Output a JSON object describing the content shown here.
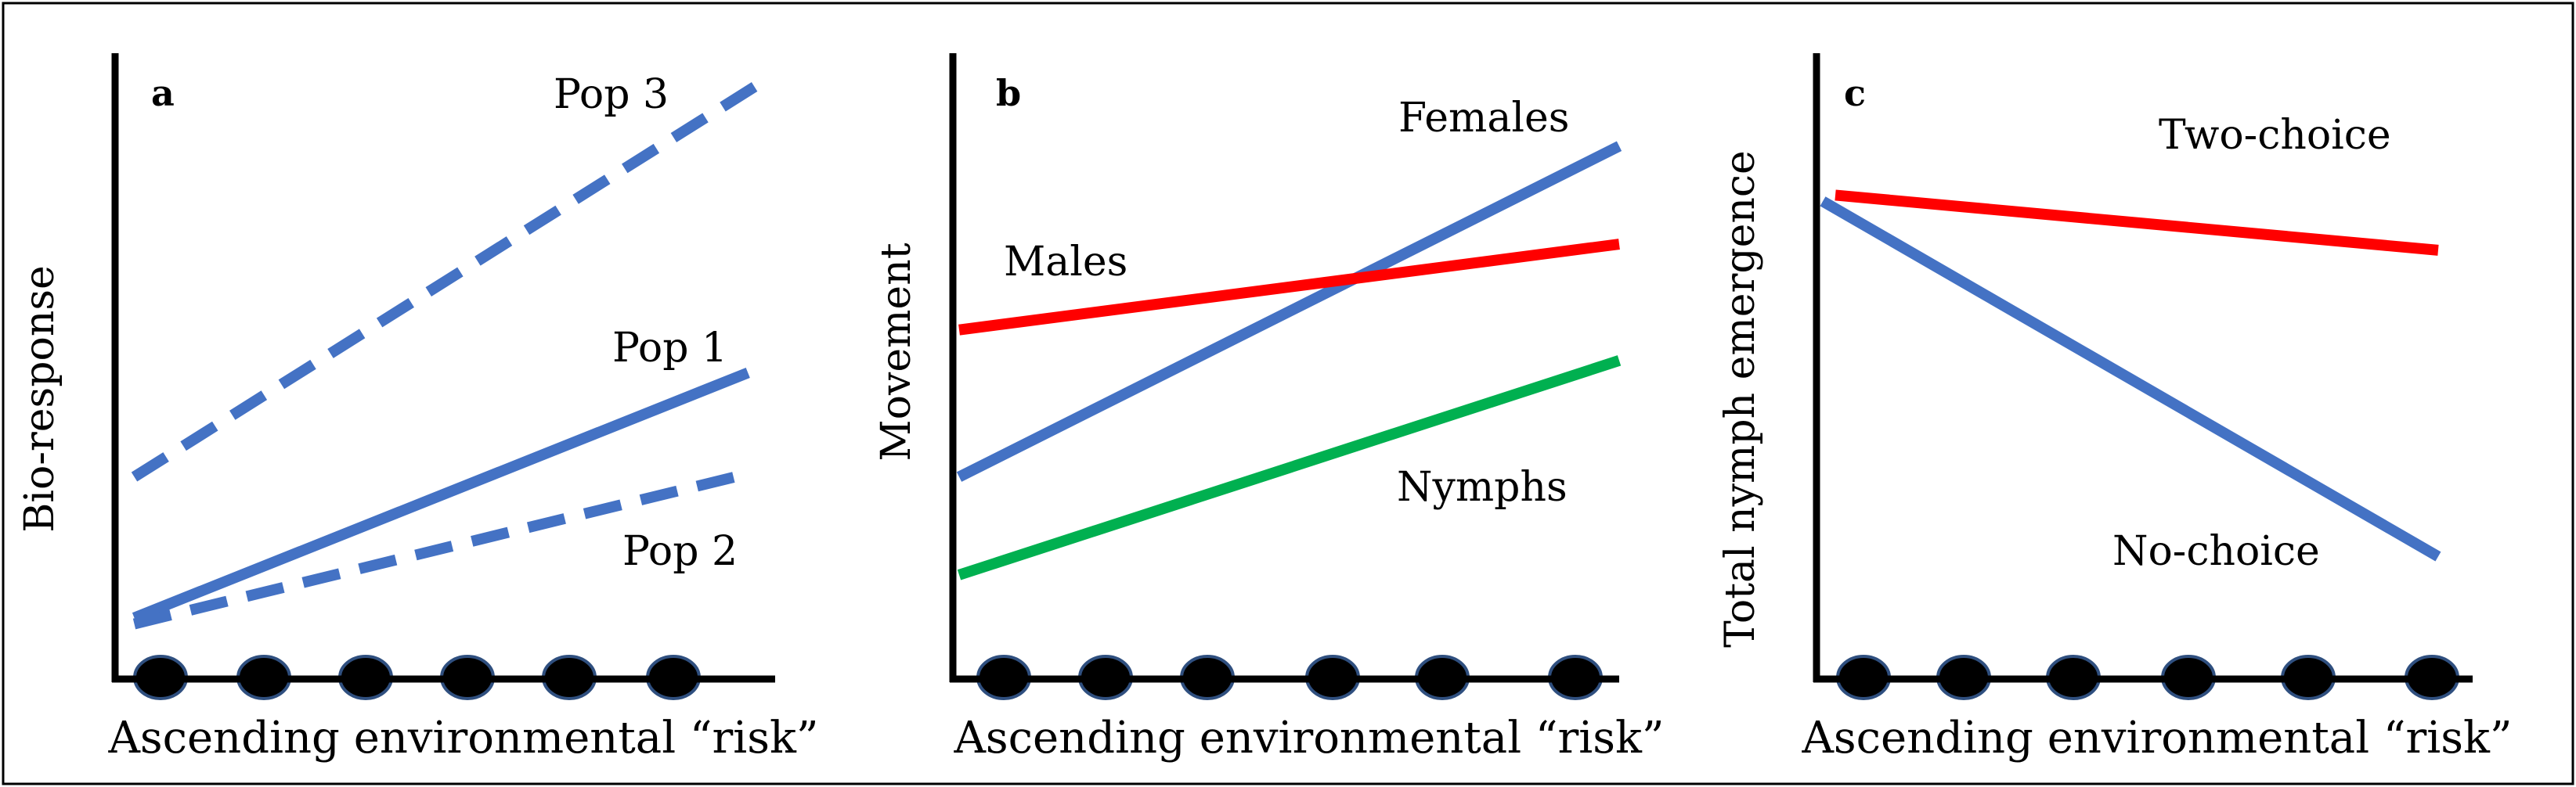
{
  "colors": {
    "blue": "#4472C4",
    "red": "#FF0000",
    "green": "#00B050",
    "axis": "#000000",
    "dot_fill": "#000000",
    "dot_stroke": "#2F4F7F"
  },
  "chart_data": [
    {
      "type": "line",
      "panel": "a",
      "xlabel": "Ascending environmental “risk”",
      "ylabel": "Bio-response",
      "xlim": [
        0,
        1
      ],
      "ylim": [
        0,
        1
      ],
      "x_markers": 6,
      "series": [
        {
          "name": "Pop 3",
          "style": "dashed",
          "color": "blue",
          "x": [
            0.02,
            1.0
          ],
          "y": [
            0.33,
            0.98
          ]
        },
        {
          "name": "Pop 1",
          "style": "solid",
          "color": "blue",
          "x": [
            0.02,
            0.97
          ],
          "y": [
            0.1,
            0.5
          ]
        },
        {
          "name": "Pop 2",
          "style": "dashed",
          "color": "blue",
          "x": [
            0.02,
            0.95
          ],
          "y": [
            0.09,
            0.33
          ]
        }
      ]
    },
    {
      "type": "line",
      "panel": "b",
      "xlabel": "Ascending environmental “risk”",
      "ylabel": "Movement",
      "xlim": [
        0,
        1
      ],
      "ylim": [
        0,
        1
      ],
      "x_markers": 6,
      "series": [
        {
          "name": "Females",
          "style": "solid",
          "color": "blue",
          "x": [
            0.0,
            1.0
          ],
          "y": [
            0.33,
            0.87
          ]
        },
        {
          "name": "Males",
          "style": "solid",
          "color": "red",
          "x": [
            0.0,
            1.0
          ],
          "y": [
            0.57,
            0.71
          ]
        },
        {
          "name": "Nymphs",
          "style": "solid",
          "color": "green",
          "x": [
            0.0,
            1.0
          ],
          "y": [
            0.17,
            0.52
          ]
        }
      ]
    },
    {
      "type": "line",
      "panel": "c",
      "xlabel": "Ascending environmental “risk”",
      "ylabel": "Total nymph emergence",
      "xlim": [
        0,
        1
      ],
      "ylim": [
        0,
        1
      ],
      "x_markers": 6,
      "series": [
        {
          "name": "Two-choice",
          "style": "solid",
          "color": "red",
          "x": [
            0.02,
            0.98
          ],
          "y": [
            0.79,
            0.7
          ]
        },
        {
          "name": "No-choice",
          "style": "solid",
          "color": "blue",
          "x": [
            0.0,
            0.98
          ],
          "y": [
            0.78,
            0.2
          ]
        }
      ]
    }
  ]
}
